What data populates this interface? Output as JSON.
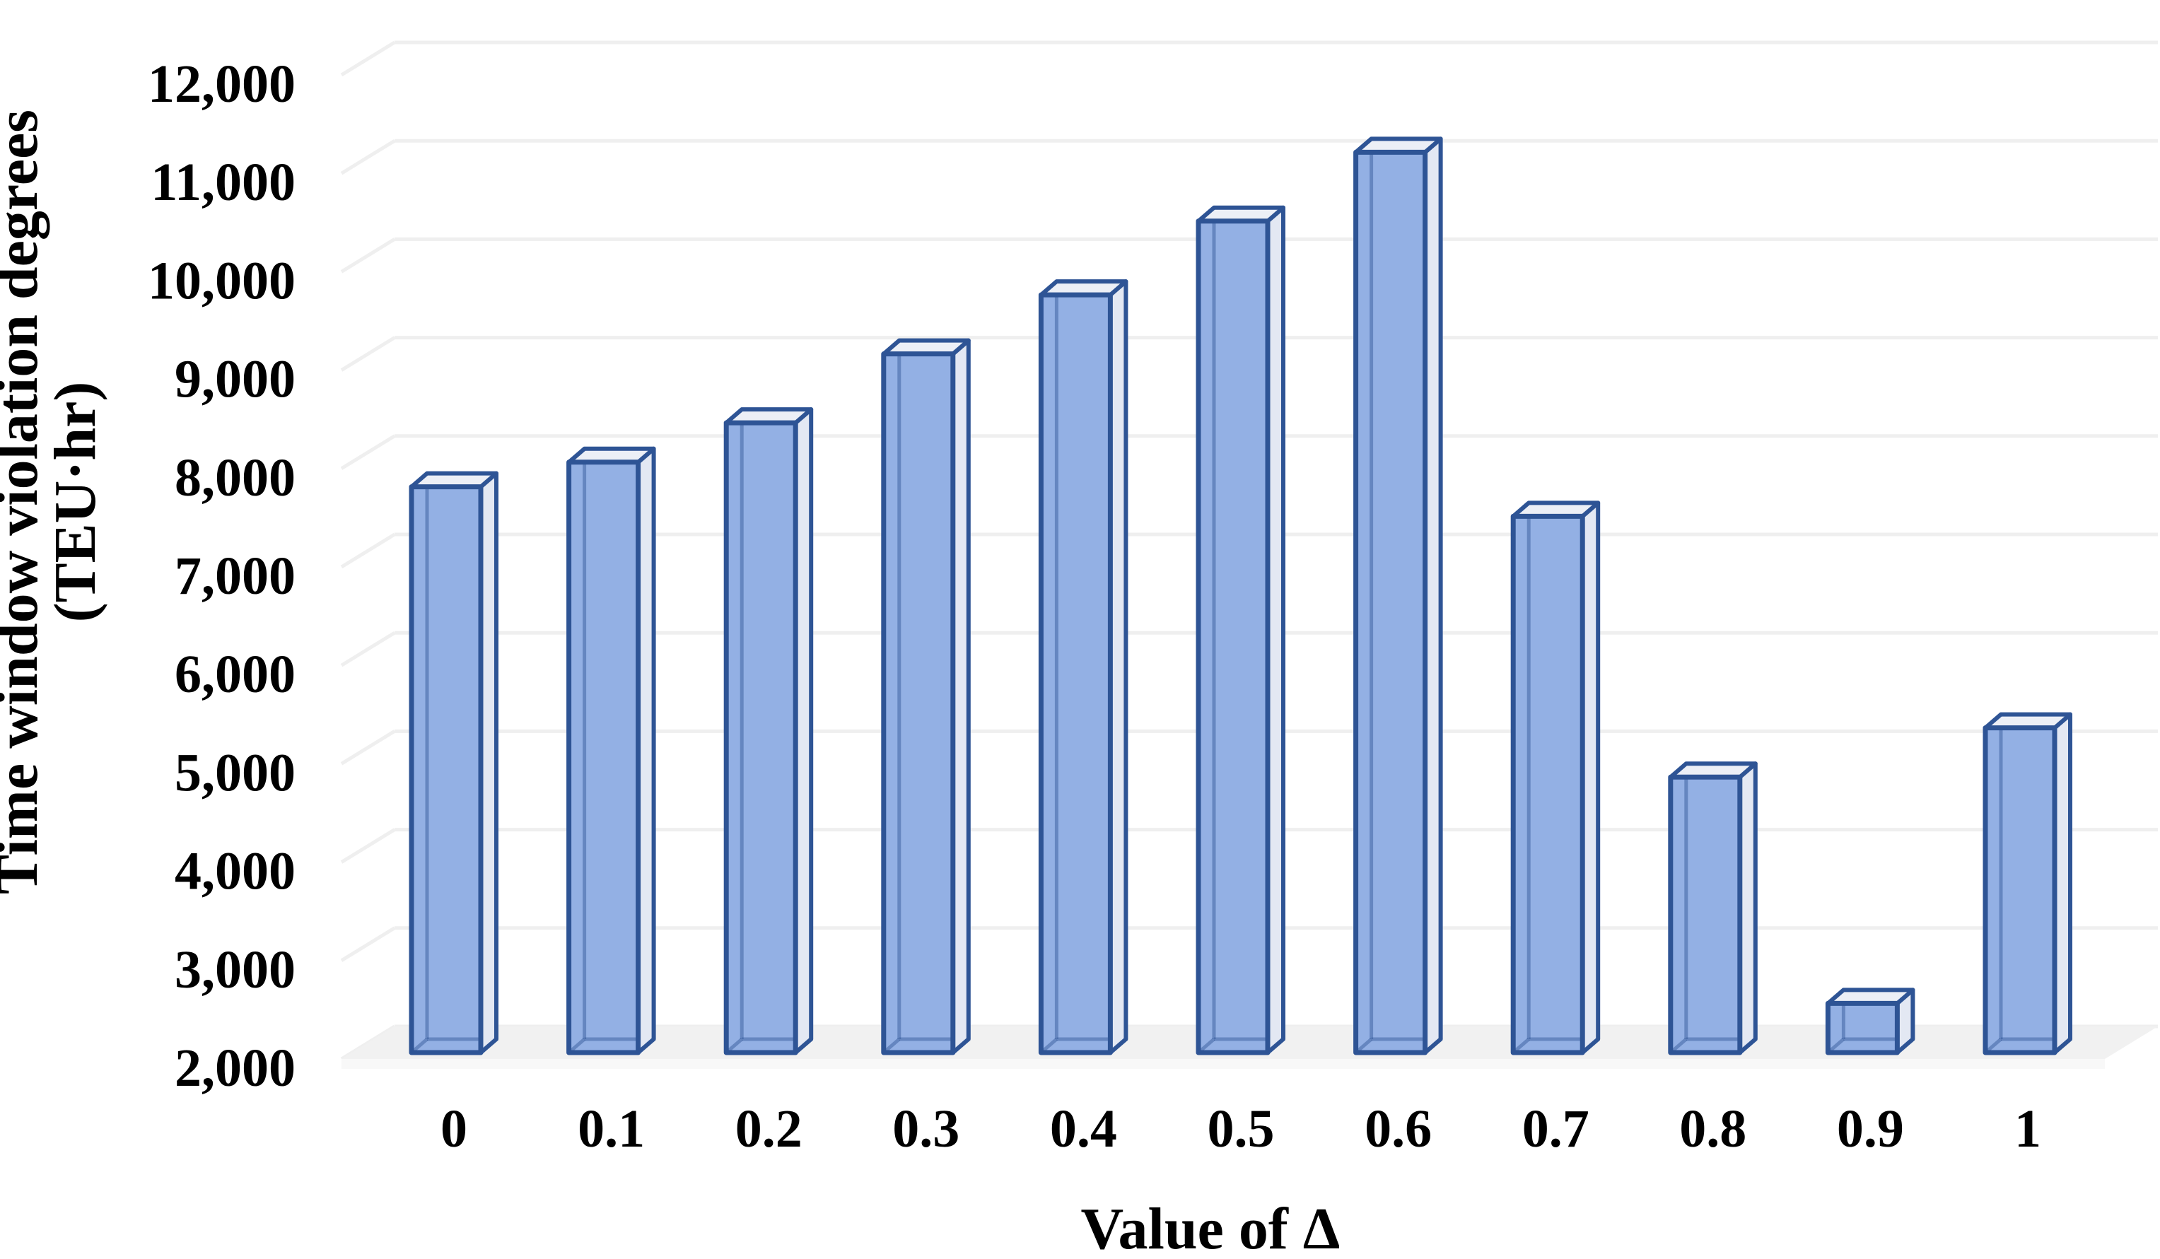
{
  "chart_data": {
    "type": "bar",
    "style": "3d-column",
    "title": "",
    "xlabel": "Value of Δ",
    "ylabel": "Time window violation degrees (TEU·hr)",
    "ylabel_line1": "Time window violation degrees",
    "ylabel_line2": "(TEU·hr)",
    "categories": [
      "0",
      "0.1",
      "0.2",
      "0.3",
      "0.4",
      "0.5",
      "0.6",
      "0.7",
      "0.8",
      "0.9",
      "1"
    ],
    "values": [
      7750,
      8000,
      8400,
      9100,
      9700,
      10450,
      11150,
      7450,
      4800,
      2500,
      5300
    ],
    "ylim": [
      2000,
      12000
    ],
    "ytick_interval": 1000,
    "ytick_labels": [
      "12,000",
      "11,000",
      "10,000",
      "9,000",
      "8,000",
      "7,000",
      "6,000",
      "5,000",
      "4,000",
      "3,000",
      "2,000"
    ],
    "grid": true,
    "legend": false
  },
  "colors": {
    "bar_front": "#93B0E4",
    "bar_side": "#E3E8F3",
    "bar_top": "#ECEFF6",
    "bar_outline": "#2E5495",
    "bar_inner_edge": "#2E5495",
    "gridline": "#EFEFEF",
    "floor": "#F1F1F1",
    "floor_edge": "#F8F8F8",
    "text": "#000000",
    "background": "#FFFFFF"
  }
}
